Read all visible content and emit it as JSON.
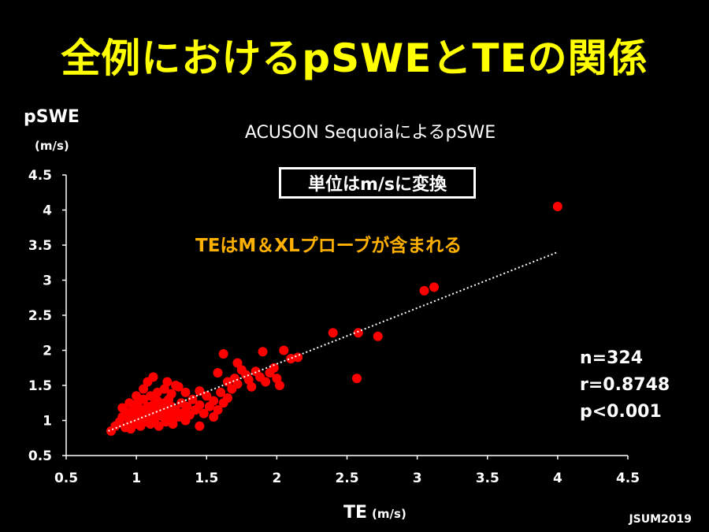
{
  "title": "全例におけるpSWEとTEの関係",
  "subtitle": "ACUSON SequoiaによるpSWE",
  "note_box": "単位はm/sに変換",
  "note_orange": "TEはM＆XLプローブが含まれる",
  "stats": {
    "n": "n=324",
    "r": "r=0.8748",
    "p": "p<0.001"
  },
  "footer": "JSUM2019",
  "chart_data": {
    "type": "scatter",
    "ylabel": "pSWE",
    "ylabel_unit": "(m/s)",
    "xlabel": "TE",
    "xlabel_unit": "(m/s)",
    "xlim": [
      0.5,
      4.5
    ],
    "ylim": [
      0.5,
      4.5
    ],
    "x_ticks": [
      "0.5",
      "1",
      "1.5",
      "2",
      "2.5",
      "3",
      "3.5",
      "4",
      "4.5"
    ],
    "y_ticks": [
      "0.5",
      "1",
      "1.5",
      "2",
      "2.5",
      "3",
      "3.5",
      "4",
      "4.5"
    ],
    "point_color": "#ff0000",
    "trendline": {
      "style": "dotted",
      "color": "#ffffff",
      "x": [
        0.8,
        4.0
      ],
      "y": [
        0.85,
        3.4
      ]
    },
    "points": [
      [
        0.82,
        0.85
      ],
      [
        0.85,
        0.92
      ],
      [
        0.88,
        0.98
      ],
      [
        0.9,
        1.05
      ],
      [
        0.92,
        0.9
      ],
      [
        0.93,
        1.12
      ],
      [
        0.95,
        1.0
      ],
      [
        0.96,
        0.88
      ],
      [
        0.97,
        1.08
      ],
      [
        0.98,
        1.2
      ],
      [
        1.0,
        0.95
      ],
      [
        1.0,
        1.1
      ],
      [
        1.01,
        1.25
      ],
      [
        1.02,
        1.02
      ],
      [
        1.03,
        0.92
      ],
      [
        1.04,
        1.15
      ],
      [
        1.05,
        1.3
      ],
      [
        1.06,
        1.05
      ],
      [
        1.07,
        0.98
      ],
      [
        1.08,
        1.2
      ],
      [
        1.09,
        1.12
      ],
      [
        1.1,
        0.95
      ],
      [
        1.1,
        1.35
      ],
      [
        1.11,
        1.08
      ],
      [
        1.12,
        1.22
      ],
      [
        1.13,
        1.0
      ],
      [
        1.14,
        1.15
      ],
      [
        1.15,
        1.28
      ],
      [
        1.16,
        0.92
      ],
      [
        1.17,
        1.1
      ],
      [
        1.18,
        1.18
      ],
      [
        1.19,
        1.05
      ],
      [
        1.2,
        1.25
      ],
      [
        1.21,
        0.98
      ],
      [
        1.22,
        1.12
      ],
      [
        1.23,
        1.3
      ],
      [
        1.24,
        1.02
      ],
      [
        1.25,
        1.2
      ],
      [
        1.26,
        0.95
      ],
      [
        1.27,
        1.1
      ],
      [
        1.28,
        1.15
      ],
      [
        1.3,
        1.05
      ],
      [
        1.32,
        1.25
      ],
      [
        1.34,
        1.12
      ],
      [
        1.36,
        1.2
      ],
      [
        1.38,
        1.08
      ],
      [
        1.4,
        1.3
      ],
      [
        1.42,
        1.15
      ],
      [
        1.45,
        1.22
      ],
      [
        1.48,
        1.1
      ],
      [
        1.5,
        1.35
      ],
      [
        1.52,
        1.2
      ],
      [
        1.55,
        1.28
      ],
      [
        1.58,
        1.15
      ],
      [
        1.6,
        1.4
      ],
      [
        1.62,
        1.25
      ],
      [
        1.12,
        1.62
      ],
      [
        1.08,
        1.55
      ],
      [
        1.05,
        1.45
      ],
      [
        1.15,
        1.4
      ],
      [
        1.2,
        1.45
      ],
      [
        1.25,
        1.38
      ],
      [
        0.95,
        1.25
      ],
      [
        0.9,
        1.18
      ],
      [
        1.0,
        1.35
      ],
      [
        1.3,
        1.48
      ],
      [
        1.35,
        1.4
      ],
      [
        1.45,
        1.42
      ],
      [
        1.65,
        1.55
      ],
      [
        1.68,
        1.45
      ],
      [
        1.7,
        1.6
      ],
      [
        1.72,
        1.52
      ],
      [
        1.75,
        1.72
      ],
      [
        1.78,
        1.65
      ],
      [
        1.8,
        1.58
      ],
      [
        1.82,
        1.48
      ],
      [
        1.85,
        1.7
      ],
      [
        1.88,
        1.62
      ],
      [
        1.9,
        1.98
      ],
      [
        1.92,
        1.55
      ],
      [
        1.95,
        1.68
      ],
      [
        1.98,
        1.75
      ],
      [
        2.0,
        1.6
      ],
      [
        2.02,
        1.5
      ],
      [
        2.05,
        2.0
      ],
      [
        2.1,
        1.88
      ],
      [
        2.15,
        1.9
      ],
      [
        1.62,
        1.95
      ],
      [
        1.72,
        1.82
      ],
      [
        1.58,
        1.68
      ],
      [
        1.65,
        1.32
      ],
      [
        1.55,
        1.05
      ],
      [
        1.45,
        0.92
      ],
      [
        1.35,
        1.0
      ],
      [
        1.28,
        1.5
      ],
      [
        1.22,
        1.55
      ],
      [
        2.4,
        2.25
      ],
      [
        2.58,
        2.25
      ],
      [
        2.72,
        2.2
      ],
      [
        2.57,
        1.6
      ],
      [
        3.05,
        2.85
      ],
      [
        3.12,
        2.9
      ],
      [
        4.0,
        4.05
      ]
    ]
  }
}
